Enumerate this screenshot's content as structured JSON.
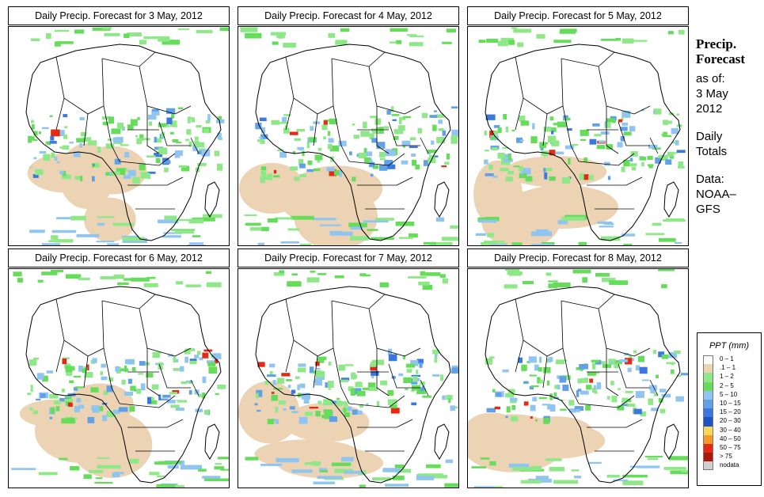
{
  "panels": [
    {
      "title": "Daily Precip. Forecast for  3 May, 2012"
    },
    {
      "title": "Daily Precip. Forecast for  4 May, 2012"
    },
    {
      "title": "Daily Precip. Forecast for  5 May, 2012"
    },
    {
      "title": "Daily Precip. Forecast for  6 May, 2012"
    },
    {
      "title": "Daily Precip. Forecast for  7 May, 2012"
    },
    {
      "title": "Daily Precip. Forecast for  8 May, 2012"
    }
  ],
  "side": {
    "heading1": "Precip.",
    "heading2": "Forecast",
    "asof": "as of:",
    "date1": "3 May",
    "date2": "2012",
    "daily1": "Daily",
    "daily2": "Totals",
    "data1": "Data:",
    "data2": "NOAA–",
    "data3": "GFS"
  },
  "legend": {
    "title": "PPT (mm)",
    "items": [
      {
        "label": "0 – 1",
        "color": "#ffffff"
      },
      {
        "label": ".1 – 1",
        "color": "#ecd3b4"
      },
      {
        "label": "1 – 2",
        "color": "#8fe887"
      },
      {
        "label": "2 – 5",
        "color": "#66dd5a"
      },
      {
        "label": "5 – 10",
        "color": "#8fc5f0"
      },
      {
        "label": "10 – 15",
        "color": "#5fa0e6"
      },
      {
        "label": "15 – 20",
        "color": "#3a78dd"
      },
      {
        "label": "20 – 30",
        "color": "#1f52c5"
      },
      {
        "label": "30 – 40",
        "color": "#f8d95a"
      },
      {
        "label": "40 – 50",
        "color": "#f49a2c"
      },
      {
        "label": "50 – 75",
        "color": "#e22a14"
      },
      {
        "label": "> 75",
        "color": "#a81a0e"
      },
      {
        "label": "nodata",
        "color": "#cfcfcf"
      }
    ]
  }
}
